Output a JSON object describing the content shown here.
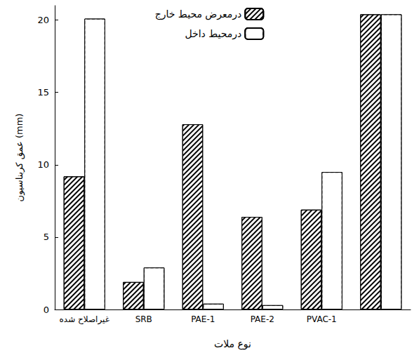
{
  "chart_data": {
    "type": "bar",
    "x_label": "نوع ملات",
    "y_label": "عمق کربناسیون (mm)",
    "categories": [
      "غیراصلاح شده",
      "SRB",
      "PAE-1",
      "PAE-2",
      "PVAC-1",
      null
    ],
    "series": [
      {
        "name": "درمعرض محیط خارج",
        "color": "#000000",
        "values": [
          9.2,
          1.9,
          12.8,
          6.4,
          6.9,
          20.4
        ]
      },
      {
        "name": "درمحیط داخل",
        "color": "#ffffff",
        "values": [
          20.1,
          2.9,
          0.4,
          0.3,
          9.5,
          20.4
        ]
      }
    ],
    "ylim": [
      0,
      21
    ],
    "yticks": [
      0,
      5,
      10,
      15,
      20
    ],
    "grid": false,
    "legend": "top"
  }
}
